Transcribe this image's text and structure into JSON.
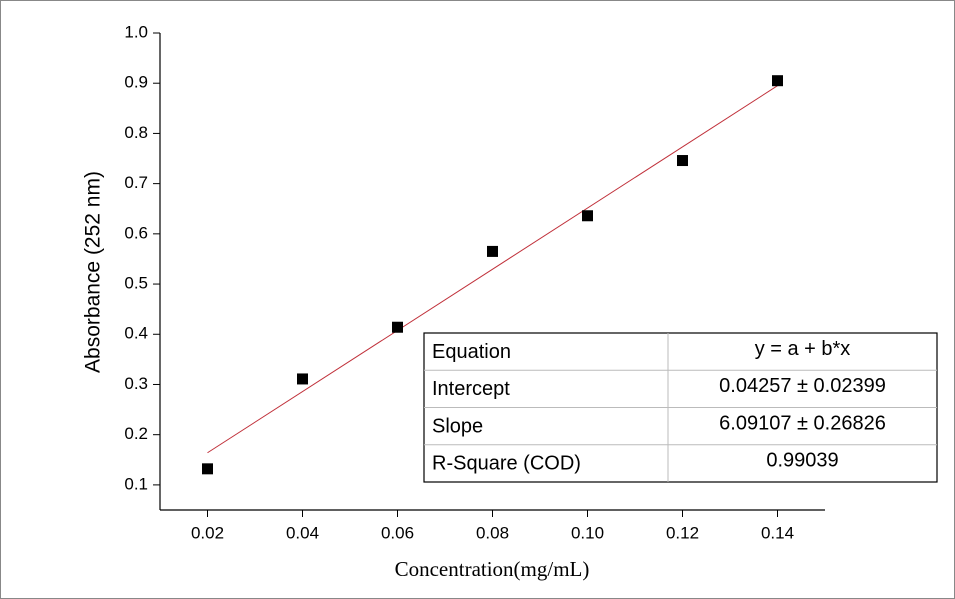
{
  "chart_data": {
    "type": "scatter",
    "x_label": "Concentration(mg/mL)",
    "y_label": "Absorbance (252 nm)",
    "series": [
      {
        "color": "#000000",
        "x": [
          0.02,
          0.04,
          0.06,
          0.08,
          0.1,
          0.12,
          0.14
        ],
        "values": [
          0.132,
          0.311,
          0.414,
          0.565,
          0.636,
          0.746,
          0.905
        ]
      }
    ],
    "fit_line": {
      "color": "#c0303a",
      "x": [
        0.02,
        0.14
      ],
      "values": [
        0.164,
        0.895
      ]
    },
    "xlim": [
      0.01,
      0.15
    ],
    "xticks": [
      0.02,
      0.04,
      0.06,
      0.08,
      {
        "value": 0.1,
        "label": "0.10"
      },
      0.12,
      0.14
    ],
    "ylim": [
      0.05,
      1.0
    ],
    "yticks": [
      0.1,
      0.2,
      0.3,
      0.4,
      0.5,
      0.6,
      0.7,
      0.8,
      0.9,
      {
        "value": 1.0,
        "label": "1.0"
      }
    ],
    "fit_table": [
      [
        "Equation",
        "y = a + b*x"
      ],
      [
        "Intercept",
        "0.04257 ± 0.02399"
      ],
      [
        "Slope",
        "6.09107 ± 0.26826"
      ],
      [
        "R-Square (COD)",
        "0.99039"
      ]
    ]
  }
}
